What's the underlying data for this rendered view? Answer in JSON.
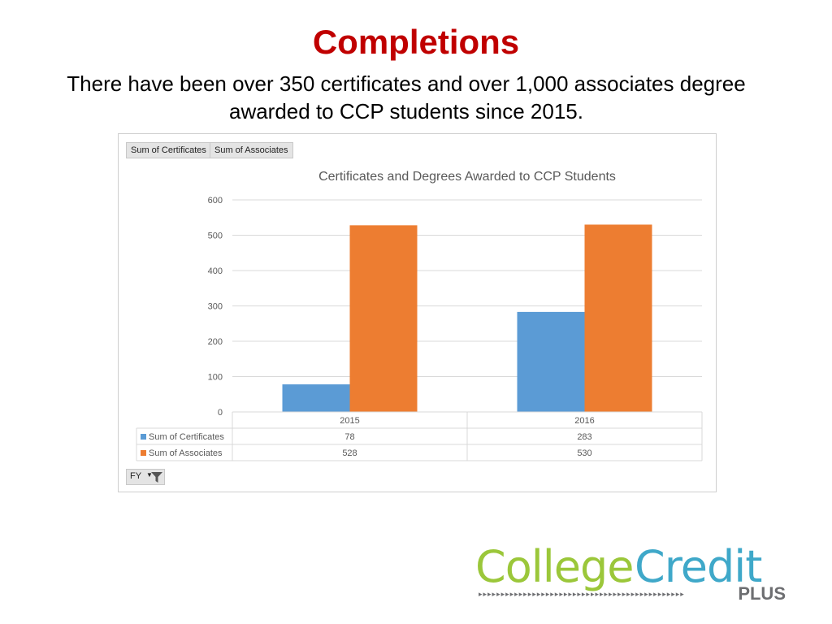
{
  "title": "Completions",
  "subtitle": "There have been over 350 certificates and over 1,000 associates degree awarded to CCP students since 2015.",
  "pivot": {
    "field_buttons": [
      "Sum of Certificates",
      "Sum of Associates"
    ],
    "filter_label": "FY"
  },
  "logo": {
    "word1": "College",
    "word2": "Credit",
    "tag": "PLUS",
    "arrows": "▸▸▸▸▸▸▸▸▸▸▸▸▸▸▸▸▸▸▸▸▸▸▸▸▸▸▸▸▸▸▸▸▸▸▸▸▸▸▸▸▸▸▸▸▸▸"
  },
  "chart_data": {
    "type": "bar",
    "title": "Certificates and Degrees Awarded to CCP Students",
    "categories": [
      "2015",
      "2016"
    ],
    "series": [
      {
        "name": "Sum of Certificates",
        "values": [
          78,
          283
        ],
        "color": "#5b9bd5"
      },
      {
        "name": "Sum of Associates",
        "values": [
          528,
          530
        ],
        "color": "#ed7d31"
      }
    ],
    "ylim": [
      0,
      600
    ],
    "yticks": [
      0,
      100,
      200,
      300,
      400,
      500,
      600
    ],
    "grid": true,
    "data_table": true
  }
}
